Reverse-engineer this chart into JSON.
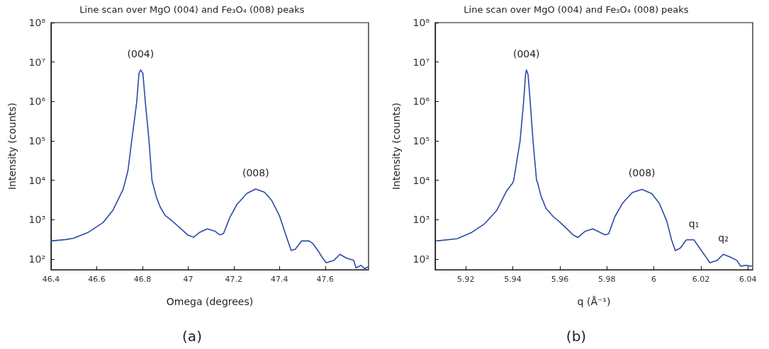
{
  "chart_data": [
    {
      "type": "line",
      "title": "Line scan over MgO (004) and Fe₃O₄ (008) peaks",
      "xlabel": "Omega (degrees)",
      "ylabel": "Intensity (counts)",
      "log": "y",
      "xlim": [
        46.4,
        47.79
      ],
      "xticks": [
        46.4,
        46.6,
        46.8,
        47,
        47.2,
        47.4,
        47.6
      ],
      "ylim": [
        54,
        100000000
      ],
      "yticks": [
        {
          "value": 100,
          "label": "10²"
        },
        {
          "value": 1000,
          "label": "10³"
        },
        {
          "value": 10000,
          "label": "10⁴"
        },
        {
          "value": 100000,
          "label": "10⁵"
        },
        {
          "value": 1000000,
          "label": "10⁶"
        },
        {
          "value": 10000000,
          "label": "10⁷"
        },
        {
          "value": 100000000,
          "label": "10⁸"
        }
      ],
      "x": [
        46.4,
        46.465,
        46.498,
        46.563,
        46.628,
        46.671,
        46.715,
        46.726,
        46.737,
        46.753,
        46.775,
        46.785,
        46.792,
        46.802,
        46.813,
        46.829,
        46.842,
        46.861,
        46.878,
        46.899,
        46.932,
        46.975,
        46.997,
        47.024,
        47.051,
        47.084,
        47.117,
        47.138,
        47.155,
        47.182,
        47.214,
        47.258,
        47.296,
        47.334,
        47.366,
        47.399,
        47.426,
        47.451,
        47.469,
        47.497,
        47.53,
        47.546,
        47.568,
        47.589,
        47.605,
        47.638,
        47.665,
        47.692,
        47.725,
        47.735,
        47.757,
        47.773,
        47.79
      ],
      "series": [
        {
          "color": "#2b4aa8",
          "values": [
            290,
            315,
            340,
            480,
            850,
            1750,
            5800,
            10000,
            18000,
            100000,
            950000,
            5200000,
            6300000,
            5200000,
            950000,
            100000,
            10000,
            3800,
            2100,
            1300,
            910,
            550,
            415,
            360,
            480,
            590,
            515,
            415,
            445,
            1120,
            2450,
            4700,
            6000,
            5000,
            3100,
            1300,
            445,
            167,
            178,
            290,
            290,
            250,
            167,
            107,
            81,
            93,
            133,
            107,
            93,
            60,
            70,
            57,
            65
          ]
        }
      ],
      "annotations": [
        {
          "text": "(004)",
          "x": 46.792,
          "y": 6300000
        },
        {
          "text": "(008)",
          "x": 47.296,
          "y": 6000
        },
        "(a)"
      ]
    },
    {
      "type": "line",
      "title": "Line scan over MgO (004) and Fe₃O₄ (008) peaks",
      "xlabel": "q (Å⁻¹)",
      "ylabel": "Intensity (counts)",
      "log": "y",
      "xlim": [
        5.907,
        6.042
      ],
      "xticks": [
        5.92,
        5.94,
        5.96,
        5.98,
        6,
        6.02,
        6.04
      ],
      "ylim": [
        54,
        100000000
      ],
      "yticks": [
        {
          "value": 100,
          "label": "10²"
        },
        {
          "value": 1000,
          "label": "10³"
        },
        {
          "value": 10000,
          "label": "10⁴"
        },
        {
          "value": 100000,
          "label": "10⁵"
        },
        {
          "value": 1000000,
          "label": "10⁶"
        },
        {
          "value": 10000000,
          "label": "10⁷"
        },
        {
          "value": 100000000,
          "label": "10⁸"
        }
      ],
      "x": [
        5.9074,
        5.9163,
        5.9226,
        5.9279,
        5.9331,
        5.9373,
        5.9399,
        5.9404,
        5.9431,
        5.9446,
        5.9454,
        5.9458,
        5.9465,
        5.9474,
        5.9486,
        5.9501,
        5.9504,
        5.952,
        5.9541,
        5.9572,
        5.9604,
        5.9635,
        5.9656,
        5.9677,
        5.9708,
        5.974,
        5.9771,
        5.9792,
        5.9808,
        5.9834,
        5.9866,
        5.9908,
        5.9949,
        5.9991,
        6.0023,
        6.0054,
        6.0075,
        6.0091,
        6.0112,
        6.0138,
        6.017,
        6.0191,
        6.0217,
        6.0238,
        6.0269,
        6.0295,
        6.0322,
        6.0353,
        6.0369,
        6.039,
        6.0416
      ],
      "series": [
        {
          "color": "#2b4aa8",
          "values": [
            290,
            330,
            480,
            780,
            1700,
            5300,
            8500,
            10000,
            100000,
            980000,
            4800000,
            6300000,
            4800000,
            980000,
            100000,
            10000,
            9300,
            4000,
            1950,
            1200,
            830,
            550,
            415,
            355,
            510,
            590,
            480,
            415,
            445,
            1200,
            2600,
            4900,
            5900,
            4600,
            2600,
            950,
            310,
            165,
            190,
            310,
            310,
            205,
            123,
            81,
            93,
            133,
            115,
            93,
            66,
            70,
            66
          ]
        }
      ],
      "annotations": [
        {
          "text": "(004)",
          "x": 5.9458,
          "y": 6300000
        },
        {
          "text": "(008)",
          "x": 5.9949,
          "y": 5900
        },
        {
          "text": "q₁",
          "x": 6.017,
          "y": 310
        },
        {
          "text": "q₂",
          "x": 6.0295,
          "y": 133
        },
        "(b)"
      ]
    }
  ]
}
